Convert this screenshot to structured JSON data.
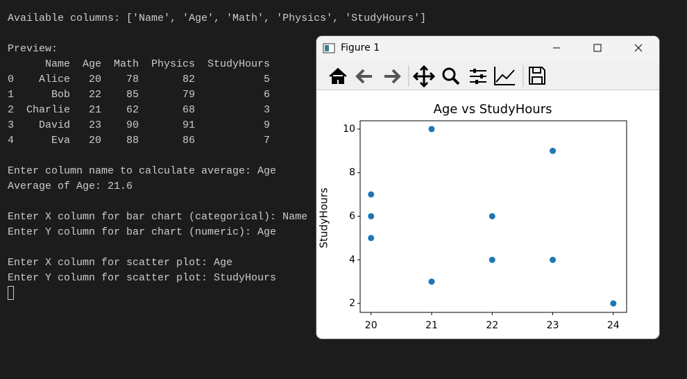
{
  "terminal": {
    "blocks": [
      [
        "Available columns: ['Name', 'Age', 'Math', 'Physics', 'StudyHours']"
      ],
      [
        "Preview:",
        "      Name  Age  Math  Physics  StudyHours",
        "0    Alice   20    78       82           5",
        "1      Bob   22    85       79           6",
        "2  Charlie   21    62       68           3",
        "3    David   23    90       91           9",
        "4      Eva   20    88       86           7"
      ],
      [
        "Enter column name to calculate average: Age",
        "Average of Age: 21.6"
      ],
      [
        "Enter X column for bar chart (categorical): Name",
        "Enter Y column for bar chart (numeric): Age"
      ],
      [
        "Enter X column for scatter plot: Age",
        "Enter Y column for scatter plot: StudyHours"
      ]
    ]
  },
  "window": {
    "title": "Figure 1"
  },
  "chart_data": {
    "type": "scatter",
    "title": "Age vs StudyHours",
    "y_label": "StudyHours",
    "x": [
      20,
      20,
      20,
      21,
      21,
      22,
      22,
      23,
      23,
      24
    ],
    "values": [
      7,
      6,
      5,
      10,
      3,
      6,
      4,
      9,
      4,
      2
    ],
    "color": "#1f77b4",
    "xlim": [
      19.82,
      24.22
    ],
    "xticks": [
      20,
      21,
      22,
      23,
      24
    ],
    "ylim": [
      1.59,
      10.38
    ],
    "yticks": [
      2,
      4,
      6,
      8,
      10
    ]
  }
}
